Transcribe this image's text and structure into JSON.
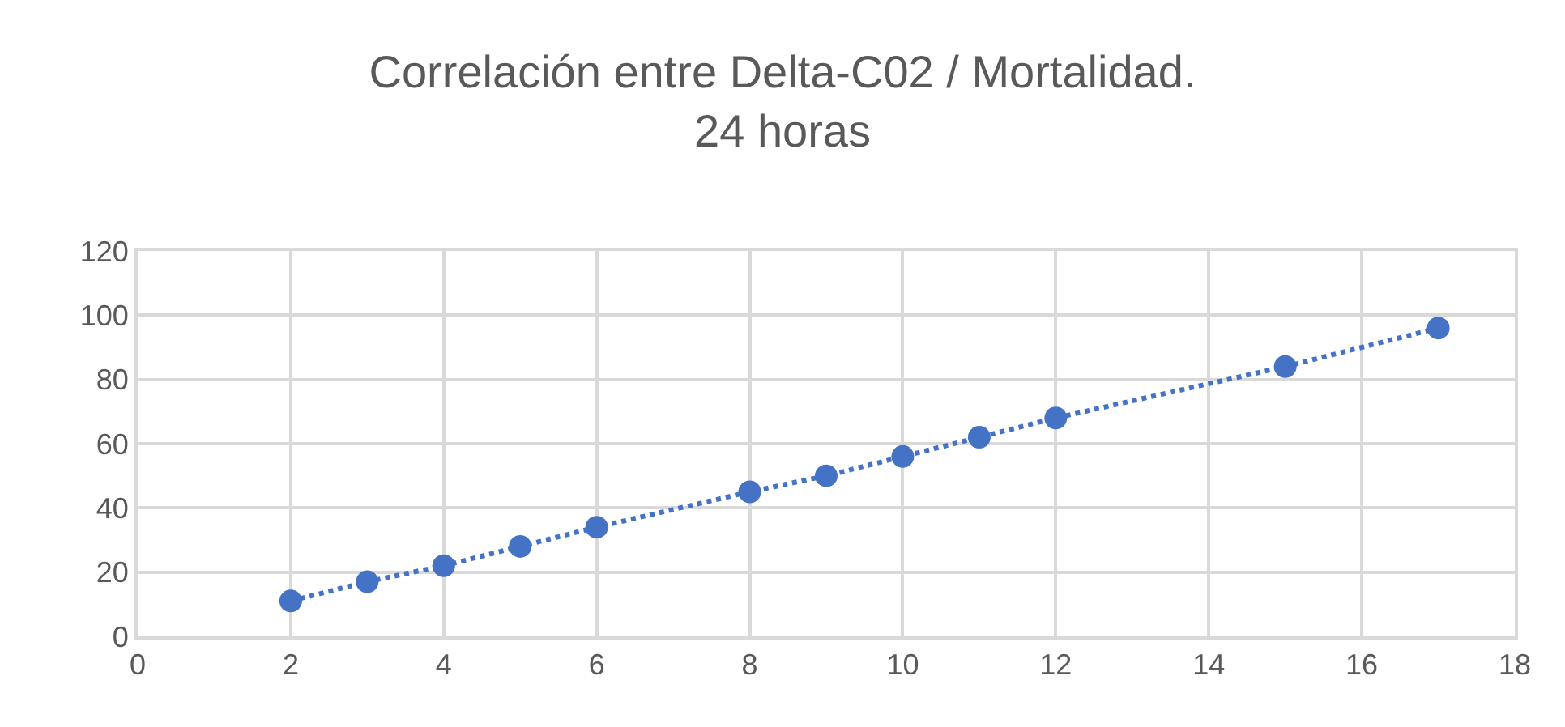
{
  "chart_data": {
    "type": "line",
    "title": "Correlación entre Delta-C02 / Mortalidad.\n24 horas",
    "x": [
      2,
      3,
      4,
      5,
      6,
      8,
      9,
      10,
      11,
      12,
      15,
      17
    ],
    "series": [
      {
        "color": "#4472c4",
        "values": [
          11,
          17,
          22,
          28,
          34,
          45,
          50,
          56,
          62,
          68,
          84,
          96
        ]
      }
    ],
    "xlim": [
      0,
      18
    ],
    "xticks": [
      0,
      2,
      4,
      6,
      8,
      10,
      12,
      14,
      16,
      18
    ],
    "ylim": [
      0,
      120
    ],
    "yticks": [
      0,
      20,
      40,
      60,
      80,
      100,
      120
    ],
    "grid": true,
    "marker": "circle",
    "line_style": "dotted"
  }
}
